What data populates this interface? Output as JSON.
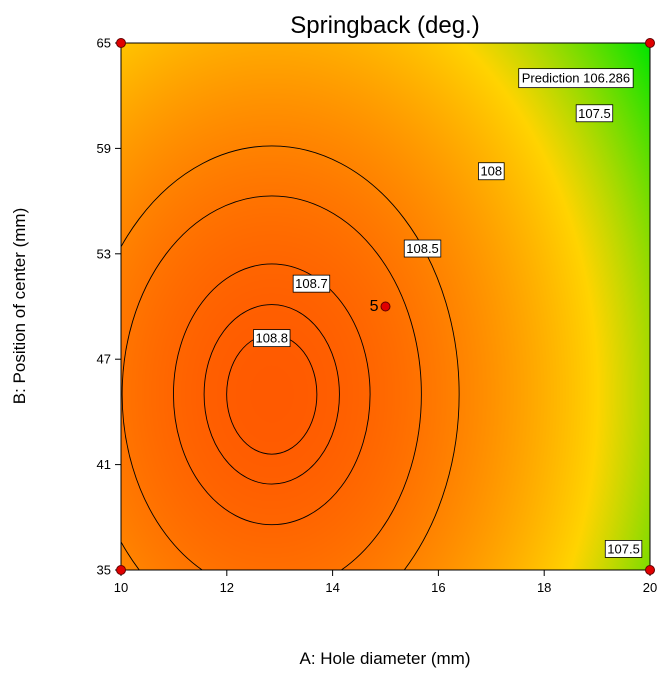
{
  "chart_data": {
    "type": "contour",
    "title": "Springback (deg.)",
    "xlabel": "A: Hole diameter (mm)",
    "ylabel": "B: Position of center (mm)",
    "xlim": [
      10,
      20
    ],
    "ylim": [
      35,
      65
    ],
    "xticks": [
      "10",
      "12",
      "14",
      "16",
      "18",
      "20"
    ],
    "yticks": [
      "35",
      "41",
      "47",
      "53",
      "59",
      "65"
    ],
    "colors": {
      "high": "#ff5a00",
      "mid": "#ffd400",
      "low": "#00e400"
    },
    "response_model": {
      "center": [
        12.85,
        45.0
      ],
      "max": 108.88,
      "ka": 0.11,
      "kb": 0.0069
    },
    "contour_levels": [
      108.8,
      108.7,
      108.5,
      108,
      107.5
    ],
    "contour_labels": [
      {
        "text": "108.8",
        "x": 12.85,
        "y": 48.2
      },
      {
        "text": "108.7",
        "x": 13.6,
        "y": 51.3
      },
      {
        "text": "108.5",
        "x": 15.7,
        "y": 53.3
      },
      {
        "text": "108",
        "x": 17.0,
        "y": 57.7
      },
      {
        "text": "107.5",
        "x": 18.95,
        "y": 61.0
      },
      {
        "text": "107.5",
        "x": 19.5,
        "y": 36.2
      }
    ],
    "design_points": [
      {
        "x": 10,
        "y": 65
      },
      {
        "x": 20,
        "y": 65
      },
      {
        "x": 10,
        "y": 35
      },
      {
        "x": 20,
        "y": 35
      },
      {
        "x": 15,
        "y": 50,
        "label": "5"
      }
    ],
    "prediction": {
      "text": "Prediction 106.286",
      "x": 18.6,
      "y": 63.0
    }
  }
}
